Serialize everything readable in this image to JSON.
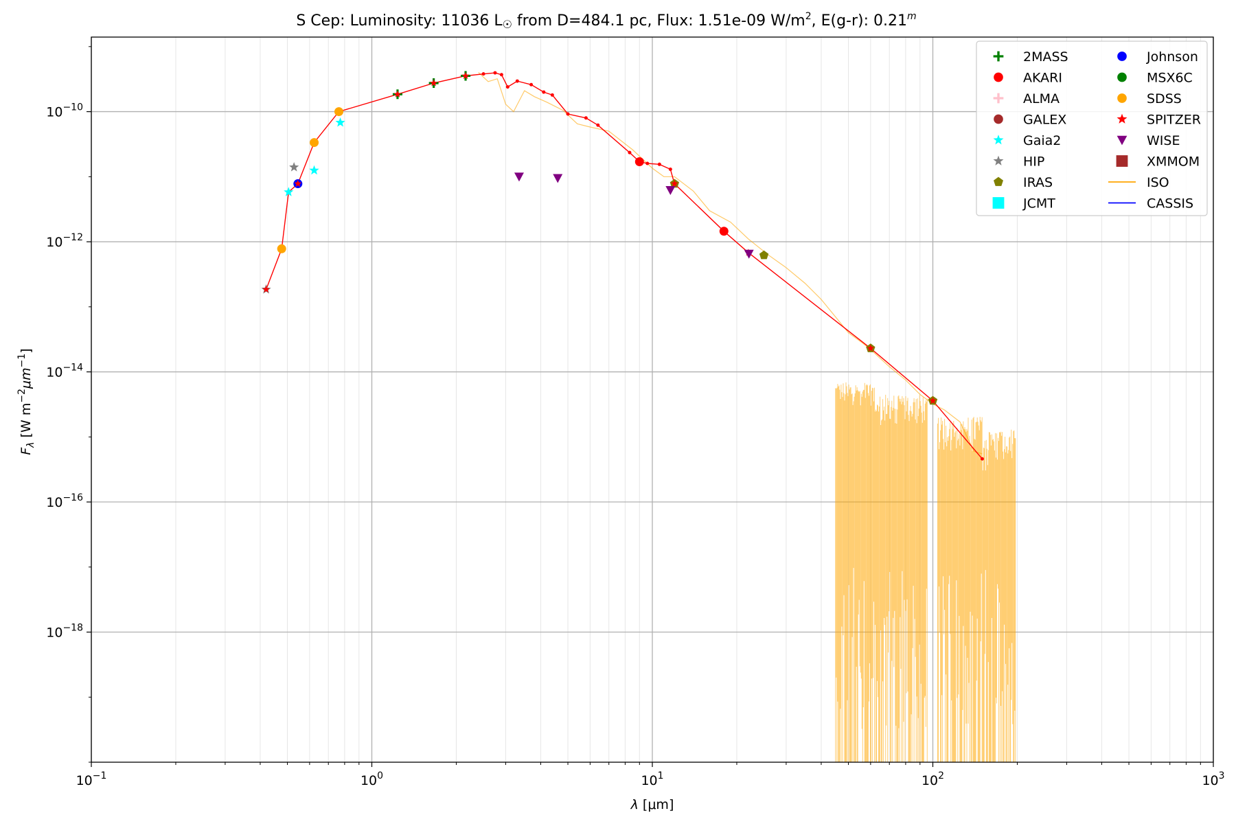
{
  "chart_data": {
    "type": "scatter",
    "title": {
      "prefix": "S Cep:  Luminosity: 11036 L",
      "sun_symbol": "☉",
      "middle": " from D=484.1 pc, Flux: 1.51e-09 W/m",
      "flux_exp": "2",
      "suffix": ", E(g-r): 0.21",
      "egr_sup": "m"
    },
    "xlabel": {
      "symbol": "λ",
      "unit": " [μm]"
    },
    "ylabel": {
      "symbol": "F",
      "sub": "λ",
      "unit_a": " [W m",
      "exp_a": "−2",
      "unit_b": "μm",
      "exp_b": "−1",
      "close": "]"
    },
    "x_scale": "log",
    "y_scale": "log",
    "xlim": [
      0.1,
      1000
    ],
    "ylim": [
      1e-20,
      1.4e-09
    ],
    "grid": true,
    "legend_position": "top-right",
    "x_ticks": [
      {
        "value": 0.1,
        "base": "10",
        "exp": "−1"
      },
      {
        "value": 1,
        "base": "10",
        "exp": "0"
      },
      {
        "value": 10,
        "base": "10",
        "exp": "1"
      },
      {
        "value": 100,
        "base": "10",
        "exp": "2"
      },
      {
        "value": 1000,
        "base": "10",
        "exp": "3"
      }
    ],
    "y_ticks": [
      {
        "value": 1e-18,
        "base": "10",
        "exp": "−18"
      },
      {
        "value": 1e-16,
        "base": "10",
        "exp": "−16"
      },
      {
        "value": 1e-14,
        "base": "10",
        "exp": "−14"
      },
      {
        "value": 1e-12,
        "base": "10",
        "exp": "−12"
      },
      {
        "value": 1e-10,
        "base": "10",
        "exp": "−10"
      }
    ],
    "legend": [
      {
        "name": "2MASS",
        "marker": "plus",
        "color": "#008000"
      },
      {
        "name": "AKARI",
        "marker": "circle",
        "color": "#ff0000"
      },
      {
        "name": "ALMA",
        "marker": "plus",
        "color": "#ffc0cb"
      },
      {
        "name": "GALEX",
        "marker": "circle",
        "color": "#a52a2a"
      },
      {
        "name": "Gaia2",
        "marker": "star",
        "color": "#00ffff"
      },
      {
        "name": "HIP",
        "marker": "star",
        "color": "#808080"
      },
      {
        "name": "IRAS",
        "marker": "pentagon",
        "color": "#808000"
      },
      {
        "name": "JCMT",
        "marker": "square",
        "color": "#00ffff"
      },
      {
        "name": "Johnson",
        "marker": "circle",
        "color": "#0000ff"
      },
      {
        "name": "MSX6C",
        "marker": "circle",
        "color": "#008000"
      },
      {
        "name": "SDSS",
        "marker": "circle",
        "color": "#ffa500"
      },
      {
        "name": "SPITZER",
        "marker": "star",
        "color": "#ff0000"
      },
      {
        "name": "WISE",
        "marker": "triangle-down",
        "color": "#800080"
      },
      {
        "name": "XMMOM",
        "marker": "square",
        "color": "#a52a2a"
      },
      {
        "name": "ISO",
        "marker": "line",
        "color": "#ffa500"
      },
      {
        "name": "CASSIS",
        "marker": "line",
        "color": "#0000ff"
      }
    ],
    "series": [
      {
        "name": "2MASS",
        "marker": "plus",
        "color": "#008000",
        "points": [
          [
            1.235,
            1.85e-10
          ],
          [
            1.662,
            2.75e-10
          ],
          [
            2.159,
            3.55e-10
          ]
        ]
      },
      {
        "name": "AKARI",
        "marker": "circle",
        "color": "#ff0000",
        "points": [
          [
            9.0,
            1.7e-11
          ],
          [
            18.0,
            1.45e-12
          ]
        ]
      },
      {
        "name": "Gaia2",
        "marker": "star",
        "color": "#00ffff",
        "points": [
          [
            0.505,
            5.8e-12
          ],
          [
            0.623,
            1.25e-11
          ],
          [
            0.772,
            6.8e-11
          ]
        ]
      },
      {
        "name": "HIP",
        "marker": "star",
        "color": "#808080",
        "points": [
          [
            0.42,
            1.85e-13
          ],
          [
            0.528,
            1.4e-11
          ]
        ]
      },
      {
        "name": "IRAS",
        "marker": "pentagon",
        "color": "#808000",
        "points": [
          [
            12.0,
            7.8e-12
          ],
          [
            25.0,
            6.2e-13
          ],
          [
            60.0,
            2.3e-14
          ],
          [
            100.0,
            3.6e-15
          ]
        ]
      },
      {
        "name": "Johnson",
        "marker": "circle",
        "color": "#0000ff",
        "points": [
          [
            0.545,
            7.8e-12
          ]
        ]
      },
      {
        "name": "SDSS",
        "marker": "circle",
        "color": "#ffa500",
        "points": [
          [
            0.477,
            7.8e-13
          ],
          [
            0.623,
            3.35e-11
          ],
          [
            0.763,
            1e-10
          ]
        ]
      },
      {
        "name": "SPITZER",
        "marker": "star",
        "color": "#ff0000",
        "points": [
          [
            0.42,
            1.85e-13
          ],
          [
            0.545,
            7.8e-12
          ],
          [
            1.235,
            1.85e-10
          ],
          [
            1.662,
            2.75e-10
          ],
          [
            2.159,
            3.55e-10
          ],
          [
            12.0,
            7.8e-12
          ],
          [
            22.0,
            6.8e-13
          ],
          [
            60.0,
            2.3e-14
          ],
          [
            100.0,
            3.6e-15
          ]
        ]
      },
      {
        "name": "WISE",
        "marker": "triangle-down",
        "color": "#800080",
        "points": [
          [
            3.35,
            1e-11
          ],
          [
            4.6,
            9.5e-12
          ],
          [
            11.6,
            6.2e-12
          ],
          [
            22.1,
            6.5e-13
          ]
        ]
      }
    ],
    "model_line": {
      "color": "#ff0000",
      "points": [
        [
          0.42,
          1.85e-13
        ],
        [
          0.477,
          7.8e-13
        ],
        [
          0.505,
          5.8e-12
        ],
        [
          0.545,
          7.8e-12
        ],
        [
          0.623,
          3.35e-11
        ],
        [
          0.763,
          1e-10
        ],
        [
          1.235,
          1.85e-10
        ],
        [
          1.662,
          2.75e-10
        ],
        [
          2.159,
          3.55e-10
        ],
        [
          2.5,
          3.8e-10
        ],
        [
          2.75,
          3.95e-10
        ],
        [
          2.9,
          3.7e-10
        ],
        [
          3.05,
          2.4e-10
        ],
        [
          3.3,
          2.95e-10
        ],
        [
          3.7,
          2.6e-10
        ],
        [
          4.1,
          2e-10
        ],
        [
          4.4,
          1.8e-10
        ],
        [
          5.0,
          9.2e-11
        ],
        [
          5.8,
          8e-11
        ],
        [
          6.4,
          6.2e-11
        ],
        [
          8.3,
          2.35e-11
        ],
        [
          9.0,
          1.7e-11
        ],
        [
          9.6,
          1.6e-11
        ],
        [
          10.6,
          1.55e-11
        ],
        [
          11.6,
          1.3e-11
        ],
        [
          12.0,
          7.8e-12
        ],
        [
          18.0,
          1.45e-12
        ],
        [
          22.0,
          6.8e-13
        ],
        [
          60.0,
          2.3e-14
        ],
        [
          100.0,
          3.6e-15
        ],
        [
          150.0,
          4.6e-16
        ]
      ]
    },
    "iso_spectrum": {
      "color": "#ffa500",
      "points": [
        [
          2.4,
          4e-10
        ],
        [
          2.6,
          2.9e-10
        ],
        [
          2.8,
          3.2e-10
        ],
        [
          3.0,
          1.3e-10
        ],
        [
          3.2,
          1e-10
        ],
        [
          3.5,
          2.1e-10
        ],
        [
          3.8,
          1.7e-10
        ],
        [
          4.2,
          1.4e-10
        ],
        [
          4.8,
          1.05e-10
        ],
        [
          5.4,
          6.5e-11
        ],
        [
          6.0,
          5.8e-11
        ],
        [
          7.0,
          5e-11
        ],
        [
          8.5,
          2.6e-11
        ],
        [
          10.0,
          1.35e-11
        ],
        [
          11.0,
          1e-11
        ],
        [
          12.0,
          1e-11
        ],
        [
          14.0,
          6e-12
        ],
        [
          16.0,
          3e-12
        ],
        [
          19.0,
          2e-12
        ],
        [
          22.0,
          1.1e-12
        ],
        [
          26.0,
          6.2e-13
        ],
        [
          30.0,
          4e-13
        ],
        [
          35.0,
          2.3e-13
        ],
        [
          40.0,
          1.3e-13
        ],
        [
          45.0,
          7e-14
        ],
        [
          50.0,
          4e-14
        ],
        [
          56.0,
          2.8e-14
        ],
        [
          60.0,
          2.2e-14
        ],
        [
          70.0,
          1.2e-14
        ],
        [
          80.0,
          7.5e-15
        ],
        [
          90.0,
          4.5e-15
        ],
        [
          100.0,
          3.2e-15
        ],
        [
          110.0,
          2.6e-15
        ],
        [
          125.0,
          1.7e-15
        ],
        [
          140.0,
          6e-16
        ],
        [
          150.0,
          5.5e-16
        ]
      ],
      "noisy_range": [
        45,
        197
      ]
    }
  }
}
